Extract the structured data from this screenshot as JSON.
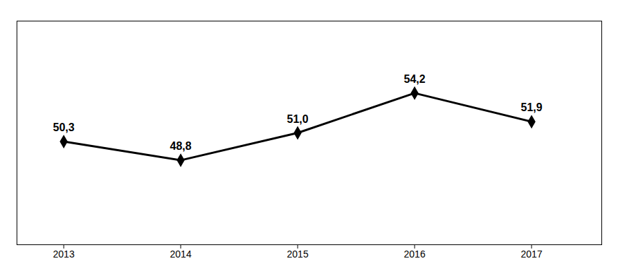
{
  "chart_data": {
    "type": "line",
    "x": [
      2013,
      2014,
      2015,
      2016,
      2017
    ],
    "values": [
      50.3,
      48.8,
      51.0,
      54.2,
      51.9
    ],
    "value_labels": [
      "50,3",
      "48,8",
      "51,0",
      "54,2",
      "51,9"
    ],
    "data_labels": true,
    "marker": "diamond",
    "xlim": [
      2012.6,
      2017.6
    ],
    "xticks": [
      2013,
      2014,
      2015,
      2016,
      2017
    ],
    "ylim": [
      42,
      60
    ],
    "tick_labels": "x"
  }
}
